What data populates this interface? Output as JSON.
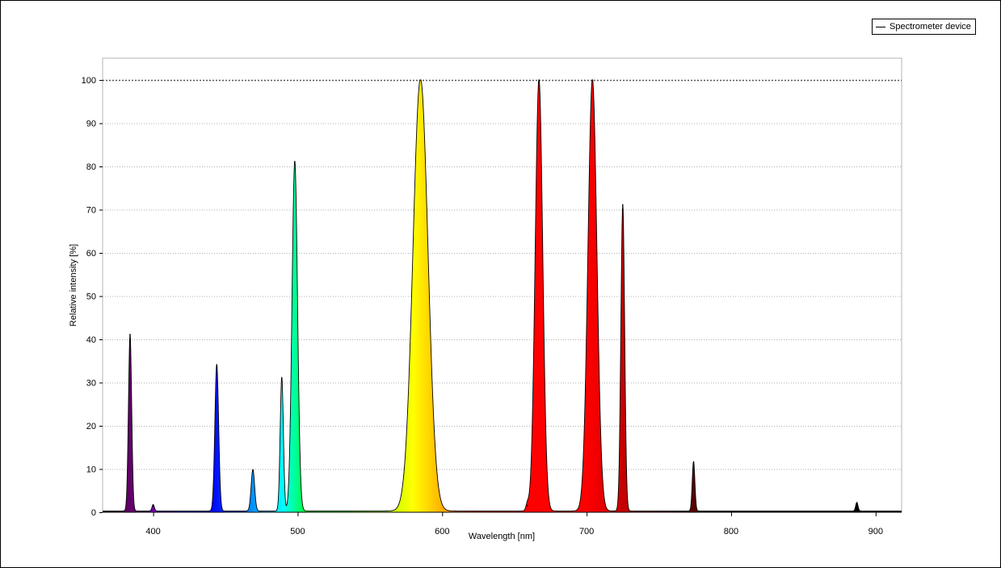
{
  "chart_data": {
    "type": "area",
    "xlabel": "Wavelength [nm]",
    "ylabel": "Relative intensity [%]",
    "xlim": [
      365,
      918
    ],
    "ylim": [
      0,
      105
    ],
    "reference_line": 100,
    "x_ticks": [
      400,
      500,
      600,
      700,
      800,
      900
    ],
    "y_ticks": [
      0,
      10,
      20,
      30,
      40,
      50,
      60,
      70,
      80,
      90,
      100
    ],
    "grid": "horizontal dotted",
    "legend": {
      "position": "top-right",
      "entries": [
        "Spectrometer device"
      ]
    },
    "series": [
      {
        "name": "Spectrometer device",
        "fill": "wavelength-colored",
        "peaks": [
          {
            "x": 384,
            "y": 41,
            "width": 1.1
          },
          {
            "x": 400,
            "y": 1.5,
            "width": 0.8
          },
          {
            "x": 444,
            "y": 34,
            "width": 1.3
          },
          {
            "x": 469,
            "y": 9.6,
            "width": 1.2
          },
          {
            "x": 489,
            "y": 31,
            "width": 1.1
          },
          {
            "x": 498,
            "y": 81,
            "width": 1.9
          },
          {
            "x": 585,
            "y": 100,
            "width": 5.2
          },
          {
            "x": 659,
            "y": 1.5,
            "width": 1.0
          },
          {
            "x": 667,
            "y": 100,
            "width": 2.6
          },
          {
            "x": 704,
            "y": 100,
            "width": 3.1
          },
          {
            "x": 725,
            "y": 71,
            "width": 1.3
          },
          {
            "x": 774,
            "y": 11.5,
            "width": 0.9
          },
          {
            "x": 887,
            "y": 2,
            "width": 0.8
          }
        ]
      }
    ]
  }
}
